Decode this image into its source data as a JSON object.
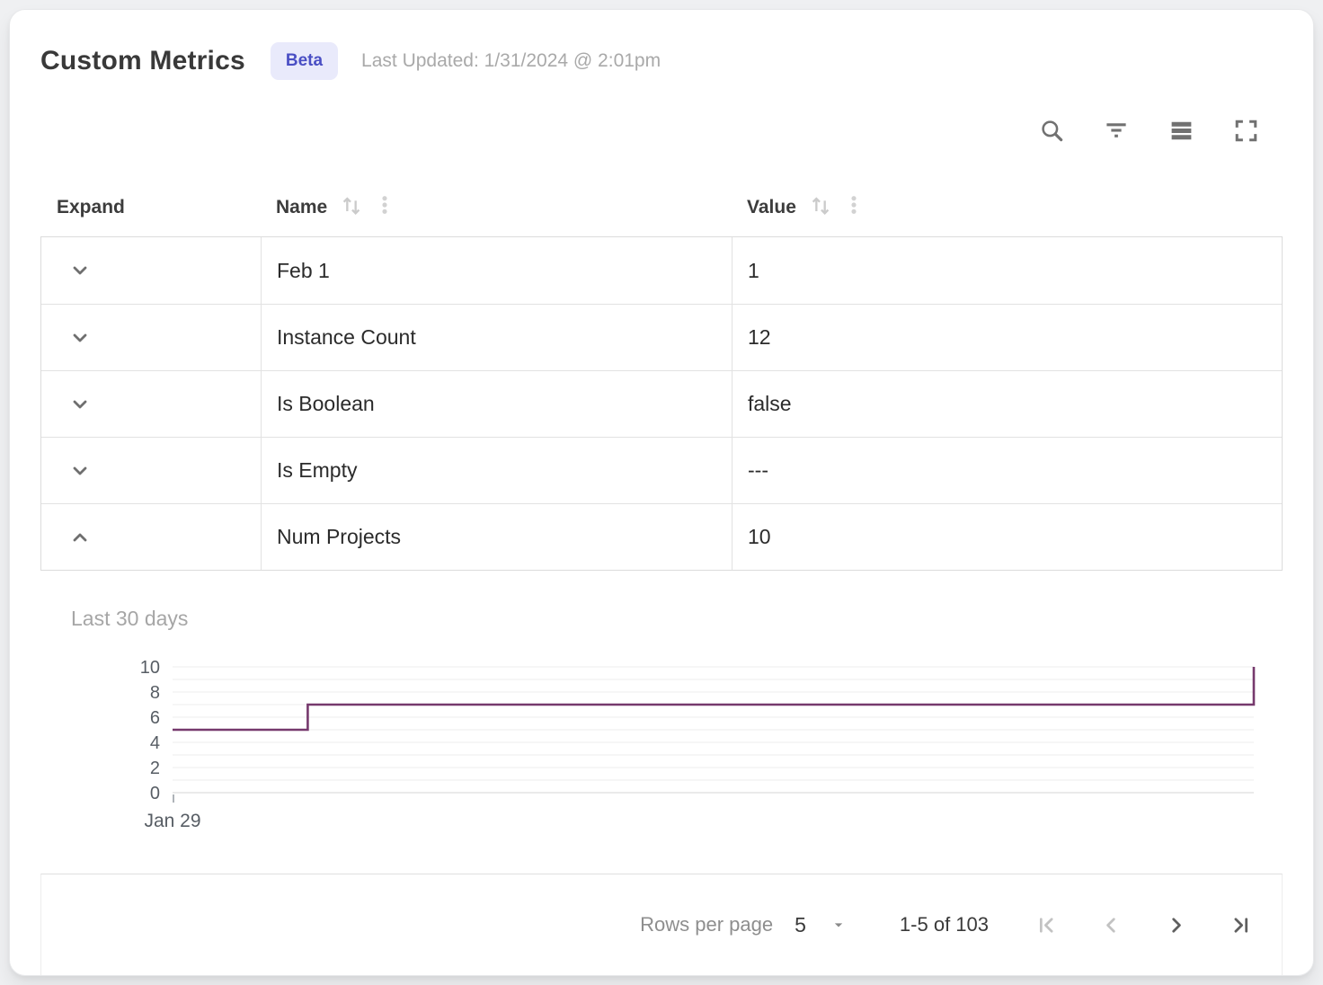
{
  "header": {
    "title": "Custom Metrics",
    "badge": "Beta",
    "last_updated": "Last Updated: 1/31/2024 @ 2:01pm"
  },
  "toolbar": {
    "icons": [
      "search",
      "filter",
      "density",
      "fullscreen"
    ]
  },
  "table": {
    "columns": [
      {
        "label": "Expand",
        "sortable": false
      },
      {
        "label": "Name",
        "sortable": true
      },
      {
        "label": "Value",
        "sortable": true
      }
    ],
    "rows": [
      {
        "name": "Feb 1",
        "value": "1",
        "expanded": false
      },
      {
        "name": "Instance Count",
        "value": "12",
        "expanded": false
      },
      {
        "name": "Is Boolean",
        "value": "false",
        "expanded": false
      },
      {
        "name": "Is Empty",
        "value": "---",
        "expanded": false
      },
      {
        "name": "Num Projects",
        "value": "10",
        "expanded": true
      }
    ]
  },
  "chart_data": {
    "type": "line",
    "subtype": "step",
    "title": "Last 30 days",
    "series_name": "Num Projects",
    "points": [
      {
        "x": 0.0,
        "y": 5
      },
      {
        "x": 0.125,
        "y": 5
      },
      {
        "x": 0.125,
        "y": 7
      },
      {
        "x": 1.0,
        "y": 7
      },
      {
        "x": 1.0,
        "y": 10
      }
    ],
    "ylim": [
      0,
      10
    ],
    "yticks": [
      0,
      2,
      4,
      6,
      8,
      10
    ],
    "grid_step": 1,
    "x_tick_labels": [
      {
        "pos": 0,
        "label": "Jan 29"
      }
    ],
    "line_color": "#76396d",
    "grid_color": "#ececec",
    "axis_label_color": "#575d64",
    "legend": "none"
  },
  "pagination": {
    "rows_per_page_label": "Rows per page",
    "rows_per_page_value": "5",
    "range_label": "1-5 of 103",
    "first_enabled": false,
    "prev_enabled": false,
    "next_enabled": true,
    "last_enabled": true
  },
  "colors": {
    "badge_bg": "#e9eafb",
    "badge_text": "#4a4fc4",
    "border": "#dcdcdc",
    "muted_text": "#a9a9a9",
    "chart_line": "#76396d"
  }
}
